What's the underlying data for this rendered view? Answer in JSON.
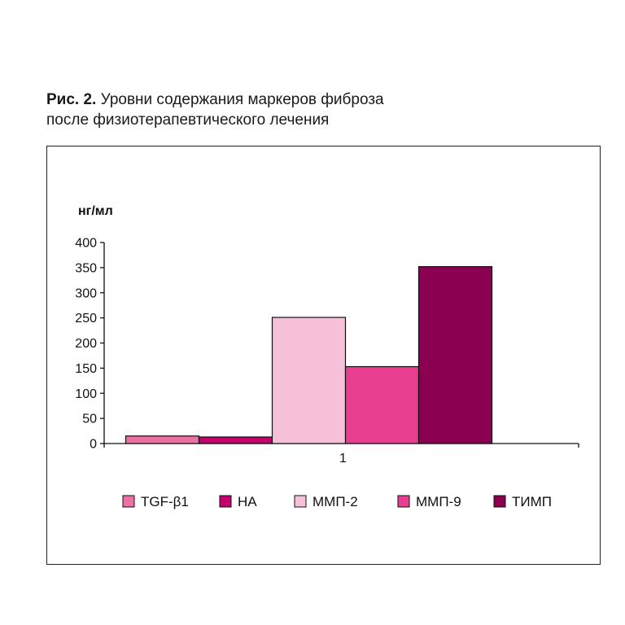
{
  "caption": {
    "label": "Рис. 2.",
    "line1": " Уровни содержания маркеров фиброза",
    "line2": "после физиотерапевтического лечения"
  },
  "chart_data": {
    "type": "bar",
    "title": "",
    "ylabel": "нг/мл",
    "xlabel": "",
    "categories": [
      "1"
    ],
    "ylim": [
      0,
      400
    ],
    "yticks": [
      0,
      50,
      100,
      150,
      200,
      250,
      300,
      350,
      400
    ],
    "grid": false,
    "legend_position": "bottom",
    "series": [
      {
        "name": "TGF-β1",
        "values": [
          15
        ],
        "color": "#ee6fa3"
      },
      {
        "name": "HA",
        "values": [
          13
        ],
        "color": "#c4006f"
      },
      {
        "name": "ММП-2",
        "values": [
          251
        ],
        "color": "#f6c0d8"
      },
      {
        "name": "ММП-9",
        "values": [
          153
        ],
        "color": "#e83e8f"
      },
      {
        "name": "ТИМП",
        "values": [
          352
        ],
        "color": "#8b0050"
      }
    ]
  }
}
